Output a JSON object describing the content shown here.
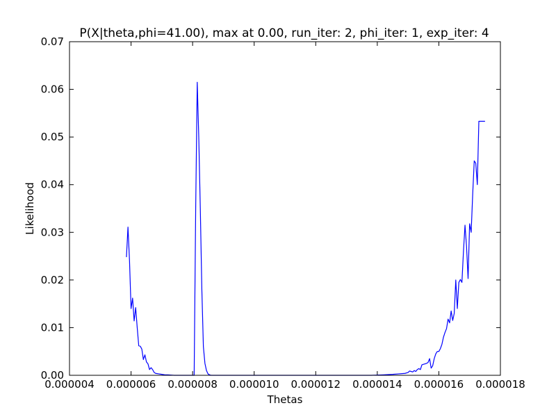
{
  "chart_data": {
    "type": "line",
    "title": "P(X|theta,phi=41.00), max at 0.00, run_iter: 2, phi_iter: 1, exp_iter: 4",
    "xlabel": "Thetas",
    "ylabel": "Likelihood",
    "xlim": [
      4e-06,
      1.8e-05
    ],
    "ylim": [
      0.0,
      0.07
    ],
    "xticks": [
      4e-06,
      6e-06,
      8e-06,
      1e-05,
      1.2e-05,
      1.4e-05,
      1.6e-05,
      1.8e-05
    ],
    "xtick_labels": [
      "0.000004",
      "0.000006",
      "0.000008",
      "0.000010",
      "0.000012",
      "0.000014",
      "0.000016",
      "0.000018"
    ],
    "yticks": [
      0.0,
      0.01,
      0.02,
      0.03,
      0.04,
      0.05,
      0.06,
      0.07
    ],
    "ytick_labels": [
      "0.00",
      "0.01",
      "0.02",
      "0.03",
      "0.04",
      "0.05",
      "0.06",
      "0.07"
    ],
    "grid": false,
    "line_color": "#0000ff",
    "series": [
      {
        "x": [
          5.85e-06,
          5.9e-06,
          5.95e-06,
          6e-06,
          6.05e-06,
          6.1e-06,
          6.15e-06,
          6.2e-06,
          6.25e-06,
          6.3e-06,
          6.35e-06,
          6.4e-06,
          6.45e-06,
          6.5e-06,
          6.55e-06,
          6.6e-06,
          6.65e-06,
          6.7e-06,
          6.75e-06,
          6.8e-06,
          6.9e-06,
          7e-06,
          7.1e-06,
          7.2e-06,
          7.4e-06,
          7.6e-06,
          7.8e-06,
          7.9e-06,
          8e-06,
          8.05e-06,
          8.1e-06,
          8.15e-06,
          8.2e-06,
          8.25e-06,
          8.3e-06,
          8.35e-06,
          8.4e-06,
          8.45e-06,
          8.5e-06,
          8.55e-06,
          8.6e-06,
          8.7e-06,
          8.8e-06,
          9e-06,
          1e-05,
          1.1e-05,
          1.2e-05,
          1.3e-05,
          1.38e-05,
          1.42e-05,
          1.45e-05,
          1.47e-05,
          1.49e-05,
          1.5e-05,
          1.505e-05,
          1.51e-05,
          1.515e-05,
          1.52e-05,
          1.525e-05,
          1.53e-05,
          1.535e-05,
          1.54e-05,
          1.545e-05,
          1.55e-05,
          1.555e-05,
          1.56e-05,
          1.565e-05,
          1.57e-05,
          1.575e-05,
          1.58e-05,
          1.585e-05,
          1.59e-05,
          1.595e-05,
          1.6e-05,
          1.605e-05,
          1.61e-05,
          1.615e-05,
          1.62e-05,
          1.625e-05,
          1.63e-05,
          1.635e-05,
          1.64e-05,
          1.645e-05,
          1.65e-05,
          1.655e-05,
          1.66e-05,
          1.665e-05,
          1.67e-05,
          1.675e-05,
          1.68e-05,
          1.685e-05,
          1.69e-05,
          1.695e-05,
          1.7e-05,
          1.705e-05,
          1.71e-05,
          1.715e-05,
          1.72e-05,
          1.725e-05,
          1.73e-05,
          1.735e-05,
          1.74e-05,
          1.745e-05,
          1.75e-05
        ],
        "y": [
          0.0248,
          0.0311,
          0.024,
          0.014,
          0.0162,
          0.0114,
          0.0142,
          0.01,
          0.0062,
          0.0061,
          0.0055,
          0.0033,
          0.0043,
          0.0028,
          0.0024,
          0.0012,
          0.0016,
          0.0012,
          0.0006,
          0.0004,
          0.0003,
          0.0002,
          0.0001,
          0.0001,
          0.0,
          0.0,
          0.0,
          0.0,
          0.0,
          0.0,
          0.035,
          0.0615,
          0.05,
          0.035,
          0.018,
          0.006,
          0.0025,
          0.001,
          0.0003,
          0.0001,
          0.0,
          0.0,
          0.0,
          0.0,
          0.0,
          0.0,
          0.0,
          0.0,
          0.0,
          0.0001,
          0.0002,
          0.0003,
          0.0004,
          0.0006,
          0.0009,
          0.0008,
          0.0007,
          0.001,
          0.0008,
          0.0012,
          0.0014,
          0.0012,
          0.0022,
          0.0023,
          0.0024,
          0.0025,
          0.0027,
          0.0035,
          0.0015,
          0.002,
          0.0035,
          0.0045,
          0.005,
          0.005,
          0.0056,
          0.0065,
          0.008,
          0.009,
          0.0098,
          0.0118,
          0.011,
          0.0135,
          0.0115,
          0.013,
          0.02,
          0.014,
          0.0195,
          0.0201,
          0.0195,
          0.026,
          0.0315,
          0.027,
          0.0203,
          0.0318,
          0.03,
          0.038,
          0.045,
          0.0445,
          0.04,
          0.0533,
          0.0533,
          0.0533,
          0.0533,
          0.0533
        ]
      }
    ]
  }
}
